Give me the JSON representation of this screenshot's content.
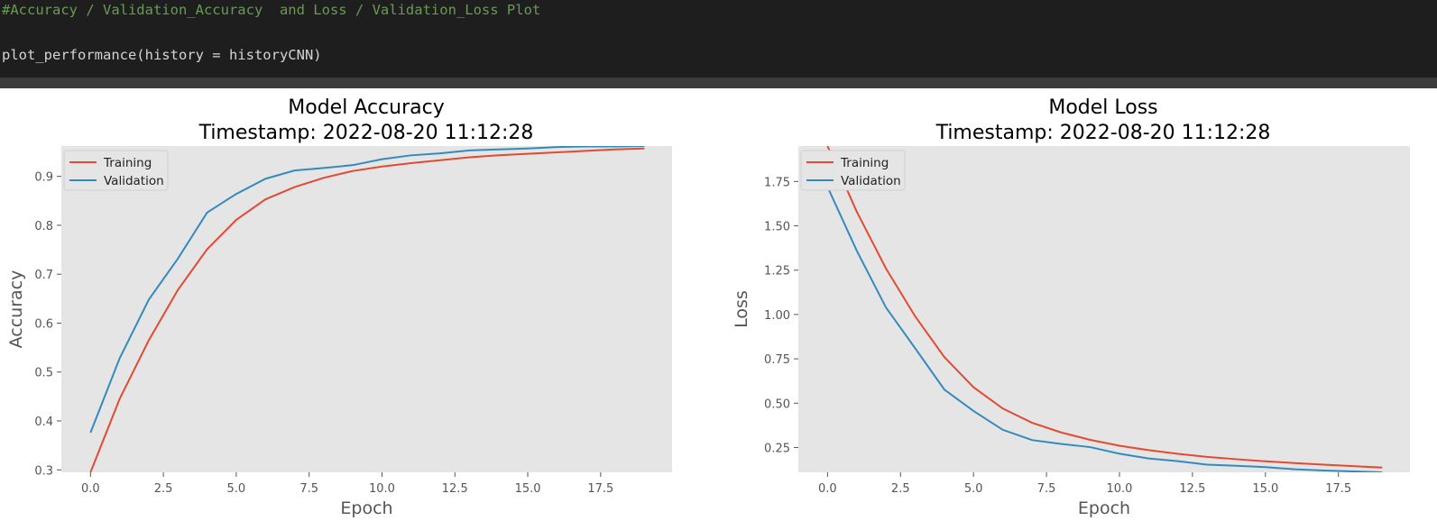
{
  "code_cell": {
    "comment": "#Accuracy / Validation_Accuracy  and Loss / Validation_Loss Plot",
    "call": "plot_performance(history = historyCNN)"
  },
  "colors": {
    "training": "#e24a33",
    "validation": "#348abd",
    "plot_bg": "#e5e5e5",
    "code_bg": "#1e1e1e",
    "comment": "#6a9955"
  },
  "chart_data": [
    {
      "type": "line",
      "title": "Model Accuracy\nTimestamp: 2022-08-20 11:12:28",
      "title_line1": "Model Accuracy",
      "title_line2": "Timestamp: 2022-08-20 11:12:28",
      "xlabel": "Epoch",
      "ylabel": "Accuracy",
      "xlim": [
        -1.0,
        19.95
      ],
      "ylim": [
        0.295,
        0.962
      ],
      "xticks": [
        0.0,
        2.5,
        5.0,
        7.5,
        10.0,
        12.5,
        15.0,
        17.5
      ],
      "xtick_labels": [
        "0.0",
        "2.5",
        "5.0",
        "7.5",
        "10.0",
        "12.5",
        "15.0",
        "17.5"
      ],
      "yticks": [
        0.3,
        0.4,
        0.5,
        0.6,
        0.7,
        0.8,
        0.9
      ],
      "ytick_labels": [
        "0.3",
        "0.4",
        "0.5",
        "0.6",
        "0.7",
        "0.8",
        "0.9"
      ],
      "grid": false,
      "legend_position": "upper-left",
      "x": [
        0,
        1,
        2,
        3,
        4,
        5,
        6,
        7,
        8,
        9,
        10,
        11,
        12,
        13,
        14,
        15,
        16,
        17,
        18,
        19
      ],
      "series": [
        {
          "name": "Training",
          "color": "#e24a33",
          "values": [
            0.295,
            0.445,
            0.565,
            0.668,
            0.751,
            0.811,
            0.853,
            0.878,
            0.897,
            0.911,
            0.92,
            0.927,
            0.933,
            0.939,
            0.943,
            0.946,
            0.949,
            0.952,
            0.955,
            0.957
          ]
        },
        {
          "name": "Validation",
          "color": "#348abd",
          "values": [
            0.376,
            0.528,
            0.648,
            0.732,
            0.826,
            0.864,
            0.895,
            0.912,
            0.917,
            0.923,
            0.935,
            0.943,
            0.947,
            0.953,
            0.955,
            0.957,
            0.96,
            0.961,
            0.961,
            0.962
          ]
        }
      ]
    },
    {
      "type": "line",
      "title": "Model Loss\nTimestamp: 2022-08-20 11:12:28",
      "title_line1": "Model Loss",
      "title_line2": "Timestamp: 2022-08-20 11:12:28",
      "xlabel": "Epoch",
      "ylabel": "Loss",
      "xlim": [
        -1.0,
        19.95
      ],
      "ylim": [
        0.11,
        1.95
      ],
      "xticks": [
        0.0,
        2.5,
        5.0,
        7.5,
        10.0,
        12.5,
        15.0,
        17.5
      ],
      "xtick_labels": [
        "0.0",
        "2.5",
        "5.0",
        "7.5",
        "10.0",
        "12.5",
        "15.0",
        "17.5"
      ],
      "yticks": [
        0.25,
        0.5,
        0.75,
        1.0,
        1.25,
        1.5,
        1.75
      ],
      "ytick_labels": [
        "0.25",
        "0.50",
        "0.75",
        "1.00",
        "1.25",
        "1.50",
        "1.75"
      ],
      "grid": false,
      "legend_position": "upper-left",
      "x": [
        0,
        1,
        2,
        3,
        4,
        5,
        6,
        7,
        8,
        9,
        10,
        11,
        12,
        13,
        14,
        15,
        16,
        17,
        18,
        19
      ],
      "series": [
        {
          "name": "Training",
          "color": "#e24a33",
          "values": [
            1.95,
            1.58,
            1.26,
            0.99,
            0.76,
            0.59,
            0.47,
            0.39,
            0.335,
            0.293,
            0.26,
            0.235,
            0.214,
            0.197,
            0.184,
            0.172,
            0.162,
            0.153,
            0.145,
            0.137
          ]
        },
        {
          "name": "Validation",
          "color": "#348abd",
          "values": [
            1.72,
            1.36,
            1.04,
            0.81,
            0.577,
            0.456,
            0.35,
            0.292,
            0.27,
            0.252,
            0.215,
            0.188,
            0.173,
            0.153,
            0.147,
            0.139,
            0.127,
            0.12,
            0.115,
            0.11
          ]
        }
      ]
    }
  ]
}
